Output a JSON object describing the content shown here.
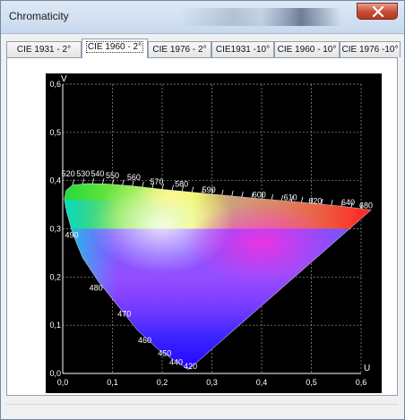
{
  "window": {
    "title": "Chromaticity",
    "close_icon": "close-icon"
  },
  "tabs": [
    {
      "label": "CIE 1931 - 2°",
      "active": false
    },
    {
      "label": "CIE 1960 - 2°",
      "active": true
    },
    {
      "label": "CIE 1976 - 2°",
      "active": false
    },
    {
      "label": "CIE1931 -10°",
      "active": false
    },
    {
      "label": "CIE 1960 - 10°",
      "active": false
    },
    {
      "label": "CIE 1976 -10°",
      "active": false
    }
  ],
  "chart_data": {
    "type": "scatter",
    "xlabel": "U",
    "ylabel": "V",
    "xlim": [
      0,
      0.6
    ],
    "ylim": [
      0,
      0.6
    ],
    "grid": true,
    "grid_style": "dashed",
    "background": "#000000",
    "x_ticks": [
      "0,0",
      "0,1",
      "0,2",
      "0,3",
      "0,4",
      "0,5",
      "0,6"
    ],
    "y_ticks": [
      "0,0",
      "0,1",
      "0,2",
      "0,3",
      "0,4",
      "0,5",
      "0,6"
    ],
    "locus_labels": [
      {
        "label": "420",
        "u": 0.257,
        "v": 0.009
      },
      {
        "label": "440",
        "u": 0.228,
        "v": 0.018
      },
      {
        "label": "450",
        "u": 0.205,
        "v": 0.036
      },
      {
        "label": "460",
        "u": 0.165,
        "v": 0.063
      },
      {
        "label": "470",
        "u": 0.124,
        "v": 0.118
      },
      {
        "label": "480",
        "u": 0.067,
        "v": 0.172
      },
      {
        "label": "490",
        "u": 0.018,
        "v": 0.281
      },
      {
        "label": "520",
        "u": 0.011,
        "v": 0.409
      },
      {
        "label": "530",
        "u": 0.041,
        "v": 0.409
      },
      {
        "label": "540",
        "u": 0.07,
        "v": 0.409
      },
      {
        "label": "550",
        "u": 0.1,
        "v": 0.405
      },
      {
        "label": "560",
        "u": 0.143,
        "v": 0.401
      },
      {
        "label": "570",
        "u": 0.189,
        "v": 0.392
      },
      {
        "label": "580",
        "u": 0.239,
        "v": 0.387
      },
      {
        "label": "590",
        "u": 0.294,
        "v": 0.375
      },
      {
        "label": "600",
        "u": 0.395,
        "v": 0.365
      },
      {
        "label": "610",
        "u": 0.458,
        "v": 0.359
      },
      {
        "label": "620",
        "u": 0.508,
        "v": 0.352
      },
      {
        "label": "640",
        "u": 0.574,
        "v": 0.349
      },
      {
        "label": "680",
        "u": 0.61,
        "v": 0.343
      }
    ],
    "spectral_locus": [
      [
        0.253,
        0.008
      ],
      [
        0.243,
        0.015
      ],
      [
        0.223,
        0.028
      ],
      [
        0.192,
        0.05
      ],
      [
        0.15,
        0.09
      ],
      [
        0.115,
        0.135
      ],
      [
        0.072,
        0.19
      ],
      [
        0.04,
        0.24
      ],
      [
        0.02,
        0.29
      ],
      [
        0.008,
        0.335
      ],
      [
        0.003,
        0.362
      ],
      [
        0.007,
        0.38
      ],
      [
        0.02,
        0.391
      ],
      [
        0.05,
        0.394
      ],
      [
        0.09,
        0.393
      ],
      [
        0.14,
        0.389
      ],
      [
        0.2,
        0.382
      ],
      [
        0.28,
        0.374
      ],
      [
        0.38,
        0.364
      ],
      [
        0.48,
        0.355
      ],
      [
        0.56,
        0.347
      ],
      [
        0.62,
        0.339
      ]
    ]
  }
}
